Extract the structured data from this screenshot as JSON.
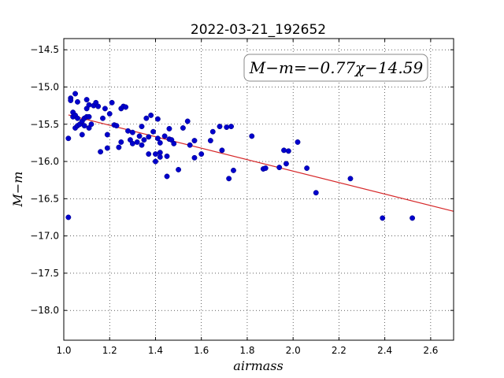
{
  "chart_data": {
    "type": "scatter",
    "title": "2022-03-21_192652",
    "xlabel": "airmass",
    "ylabel": "M−m",
    "xlim": [
      1.0,
      2.7
    ],
    "ylim": [
      -18.4,
      -14.35
    ],
    "y_inverted": true,
    "grid": true,
    "x_ticks": [
      "1.0",
      "1.2",
      "1.4",
      "1.6",
      "1.8",
      "2.0",
      "2.2",
      "2.4",
      "2.6"
    ],
    "y_ticks": [
      "−14.5",
      "−15.0",
      "−15.5",
      "−16.0",
      "−16.5",
      "−17.0",
      "−17.5",
      "−18.0"
    ],
    "annotation": "M−m=−0.77χ−14.59",
    "fit": {
      "slope": -0.77,
      "intercept": -14.59,
      "x_range": [
        1.02,
        2.7
      ],
      "color": "#d62728"
    },
    "point_color": "#0000cc",
    "points": [
      [
        1.02,
        -15.69
      ],
      [
        1.02,
        -16.75
      ],
      [
        1.03,
        -15.15
      ],
      [
        1.03,
        -15.18
      ],
      [
        1.04,
        -15.4
      ],
      [
        1.04,
        -15.34
      ],
      [
        1.05,
        -15.09
      ],
      [
        1.05,
        -15.38
      ],
      [
        1.05,
        -15.55
      ],
      [
        1.06,
        -15.42
      ],
      [
        1.06,
        -15.2
      ],
      [
        1.06,
        -15.52
      ],
      [
        1.07,
        -15.5
      ],
      [
        1.08,
        -15.46
      ],
      [
        1.08,
        -15.64
      ],
      [
        1.09,
        -15.42
      ],
      [
        1.09,
        -15.52
      ],
      [
        1.1,
        -15.4
      ],
      [
        1.1,
        -15.17
      ],
      [
        1.1,
        -15.29
      ],
      [
        1.11,
        -15.24
      ],
      [
        1.11,
        -15.4
      ],
      [
        1.11,
        -15.55
      ],
      [
        1.12,
        -15.5
      ],
      [
        1.13,
        -15.25
      ],
      [
        1.14,
        -15.21
      ],
      [
        1.15,
        -15.26
      ],
      [
        1.16,
        -15.87
      ],
      [
        1.17,
        -15.42
      ],
      [
        1.18,
        -15.29
      ],
      [
        1.19,
        -15.64
      ],
      [
        1.19,
        -15.82
      ],
      [
        1.2,
        -15.36
      ],
      [
        1.21,
        -15.21
      ],
      [
        1.22,
        -15.51
      ],
      [
        1.23,
        -15.52
      ],
      [
        1.24,
        -15.81
      ],
      [
        1.25,
        -15.74
      ],
      [
        1.25,
        -15.29
      ],
      [
        1.26,
        -15.26
      ],
      [
        1.27,
        -15.27
      ],
      [
        1.28,
        -15.59
      ],
      [
        1.29,
        -15.71
      ],
      [
        1.3,
        -15.61
      ],
      [
        1.3,
        -15.76
      ],
      [
        1.32,
        -15.74
      ],
      [
        1.33,
        -15.66
      ],
      [
        1.34,
        -15.53
      ],
      [
        1.34,
        -15.78
      ],
      [
        1.35,
        -15.71
      ],
      [
        1.36,
        -15.42
      ],
      [
        1.37,
        -15.9
      ],
      [
        1.37,
        -15.67
      ],
      [
        1.38,
        -15.38
      ],
      [
        1.39,
        -15.6
      ],
      [
        1.4,
        -15.9
      ],
      [
        1.4,
        -16.0
      ],
      [
        1.41,
        -15.69
      ],
      [
        1.41,
        -15.43
      ],
      [
        1.42,
        -15.75
      ],
      [
        1.42,
        -15.94
      ],
      [
        1.42,
        -15.88
      ],
      [
        1.44,
        -15.66
      ],
      [
        1.45,
        -16.2
      ],
      [
        1.45,
        -15.93
      ],
      [
        1.46,
        -15.56
      ],
      [
        1.46,
        -15.7
      ],
      [
        1.47,
        -15.71
      ],
      [
        1.48,
        -15.76
      ],
      [
        1.5,
        -16.11
      ],
      [
        1.52,
        -15.55
      ],
      [
        1.54,
        -15.46
      ],
      [
        1.55,
        -15.78
      ],
      [
        1.57,
        -15.95
      ],
      [
        1.57,
        -15.72
      ],
      [
        1.6,
        -15.9
      ],
      [
        1.64,
        -15.72
      ],
      [
        1.65,
        -15.6
      ],
      [
        1.68,
        -15.53
      ],
      [
        1.69,
        -15.85
      ],
      [
        1.71,
        -15.54
      ],
      [
        1.72,
        -16.23
      ],
      [
        1.73,
        -15.53
      ],
      [
        1.74,
        -16.12
      ],
      [
        1.82,
        -15.66
      ],
      [
        1.87,
        -16.1
      ],
      [
        1.88,
        -16.09
      ],
      [
        1.94,
        -16.08
      ],
      [
        1.96,
        -15.85
      ],
      [
        1.97,
        -16.03
      ],
      [
        1.98,
        -15.86
      ],
      [
        2.02,
        -15.74
      ],
      [
        2.06,
        -16.09
      ],
      [
        2.1,
        -16.42
      ],
      [
        2.25,
        -16.23
      ],
      [
        2.39,
        -16.76
      ],
      [
        2.52,
        -16.76
      ]
    ]
  }
}
